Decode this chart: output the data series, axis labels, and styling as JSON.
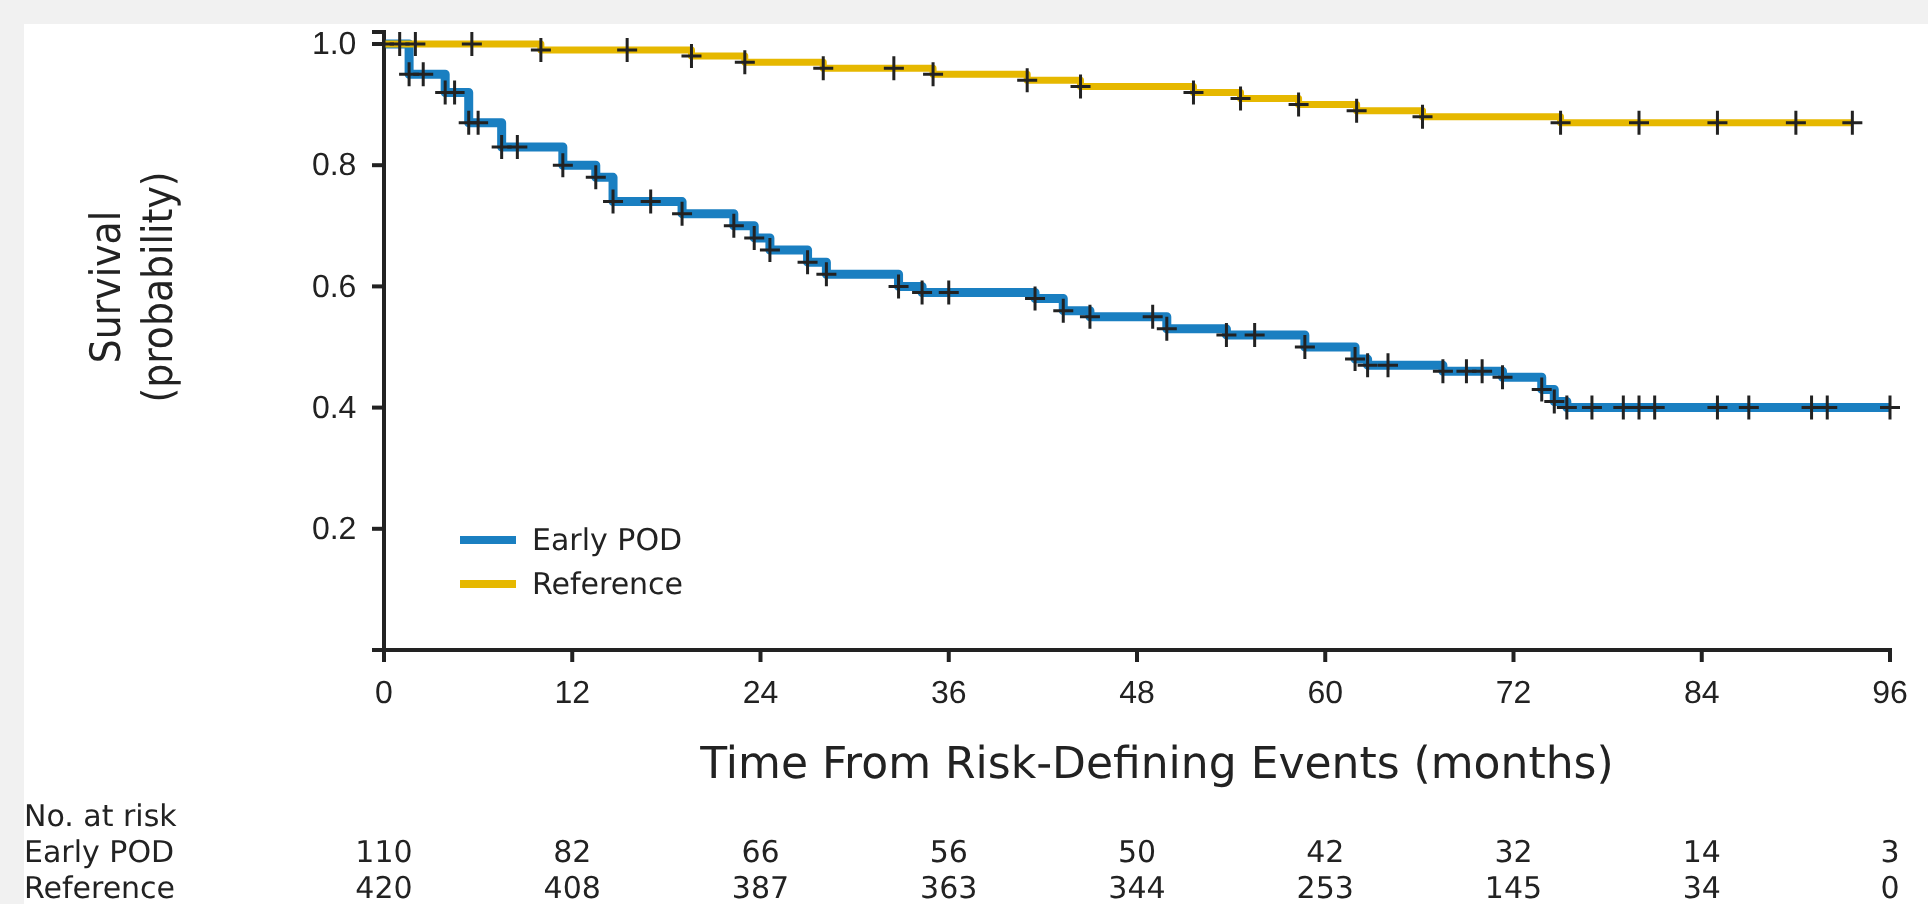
{
  "chart_data": {
    "type": "step",
    "xlabel": "Time From Risk-Defining Events (months)",
    "ylabel": "Survival (probability)",
    "xlim": [
      0,
      96
    ],
    "xticks": [
      0,
      12,
      24,
      36,
      48,
      60,
      72,
      84,
      96
    ],
    "ylim": [
      0,
      1.02
    ],
    "yticks": [
      0.2,
      0.4,
      0.6,
      0.8,
      {
        "value": 1.0,
        "label": "1.0"
      }
    ],
    "grid": false,
    "legend": "bottom left",
    "marker": "cross",
    "line_style": "solid",
    "series": [
      {
        "name": "Early POD",
        "color": "#1a7fc1",
        "x": [
          0,
          1.6,
          2.5,
          3.9,
          4.5,
          5.4,
          6,
          7.5,
          8.5,
          11.4,
          13.5,
          14.6,
          17,
          19,
          22.3,
          23.6,
          24.6,
          27,
          28.2,
          32.8,
          34.3,
          36,
          41.5,
          43.3,
          45,
          49,
          49.9,
          53.7,
          55.5,
          58.7,
          61.9,
          62.7,
          64,
          67.5,
          69,
          70,
          71.3,
          73.8,
          74.6,
          75.4,
          77,
          79,
          80,
          81,
          85,
          87,
          91,
          92,
          96
        ],
        "values": [
          1.0,
          0.95,
          0.95,
          0.92,
          0.92,
          0.87,
          0.87,
          0.83,
          0.83,
          0.8,
          0.78,
          0.74,
          0.74,
          0.72,
          0.7,
          0.68,
          0.66,
          0.64,
          0.62,
          0.6,
          0.59,
          0.59,
          0.58,
          0.56,
          0.55,
          0.55,
          0.53,
          0.52,
          0.52,
          0.5,
          0.48,
          0.47,
          0.47,
          0.46,
          0.46,
          0.46,
          0.45,
          0.43,
          0.41,
          0.4,
          0.4,
          0.4,
          0.4,
          0.4,
          0.4,
          0.4,
          0.4,
          0.4,
          0.4
        ]
      },
      {
        "name": "Reference",
        "color": "#e6b800",
        "x": [
          0,
          1,
          2,
          5.6,
          10,
          15.5,
          19.6,
          23,
          28,
          32.5,
          35,
          41,
          44.4,
          51.6,
          54.6,
          58.3,
          62,
          66.2,
          75,
          80,
          85,
          90,
          93.6
        ],
        "values": [
          1.0,
          1.0,
          1.0,
          1.0,
          0.99,
          0.99,
          0.98,
          0.97,
          0.96,
          0.96,
          0.95,
          0.94,
          0.93,
          0.92,
          0.91,
          0.9,
          0.89,
          0.88,
          0.87,
          0.87,
          0.87,
          0.87,
          0.87
        ]
      }
    ],
    "annotations": [
      "No. at risk",
      "Early POD  110  82  66  56  50  42  32  14  3",
      "Reference  420  408  387  363  344  253  145  34  0"
    ]
  }
}
